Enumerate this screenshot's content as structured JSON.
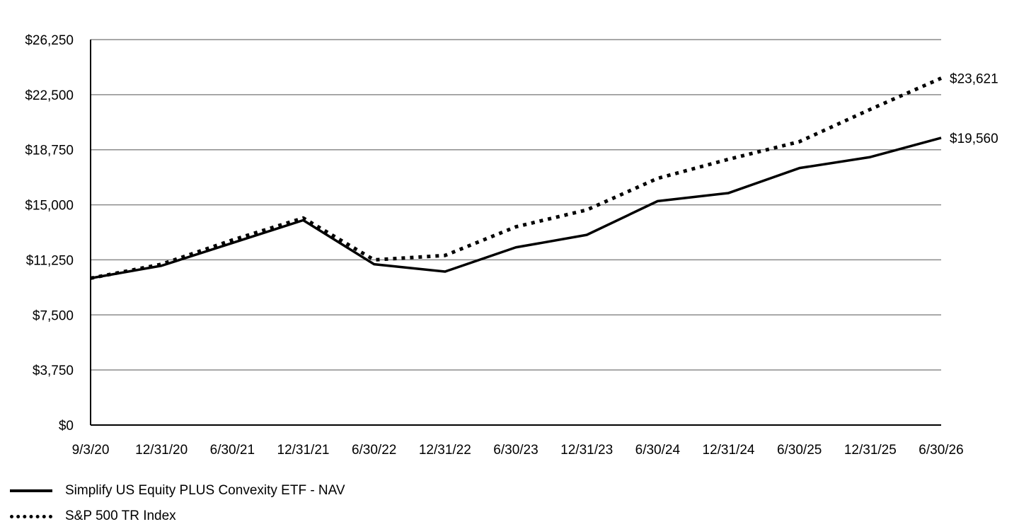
{
  "chart_data": {
    "type": "line",
    "title": "",
    "xlabel": "",
    "ylabel": "",
    "categories": [
      "9/3/20",
      "12/31/20",
      "6/30/21",
      "12/31/21",
      "6/30/22",
      "12/31/22",
      "6/30/23",
      "12/31/23",
      "6/30/24",
      "12/31/24",
      "6/30/25",
      "12/31/25",
      "6/30/26"
    ],
    "ylim": [
      0,
      26250
    ],
    "yticks": [
      "$0",
      "$3,750",
      "$7,500",
      "$11,250",
      "$15,000",
      "$18,750",
      "$22,500",
      "$26,250"
    ],
    "ytick_values": [
      0,
      3750,
      7500,
      11250,
      15000,
      18750,
      22500,
      26250
    ],
    "grid": true,
    "legend_position": "bottom-left",
    "series": [
      {
        "name": "Simplify US Equity PLUS Convexity ETF - NAV",
        "style": "solid",
        "color": "#000000",
        "values": [
          10000,
          10850,
          12400,
          13950,
          10950,
          10450,
          12100,
          12950,
          15250,
          15800,
          17500,
          18250,
          19560
        ],
        "end_label": "$19,560"
      },
      {
        "name": "S&P 500 TR Index",
        "style": "dotted",
        "color": "#000000",
        "values": [
          10000,
          10950,
          12600,
          14100,
          11250,
          11550,
          13500,
          14650,
          16800,
          18100,
          19300,
          21500,
          23621
        ],
        "end_label": "$23,621"
      }
    ]
  }
}
